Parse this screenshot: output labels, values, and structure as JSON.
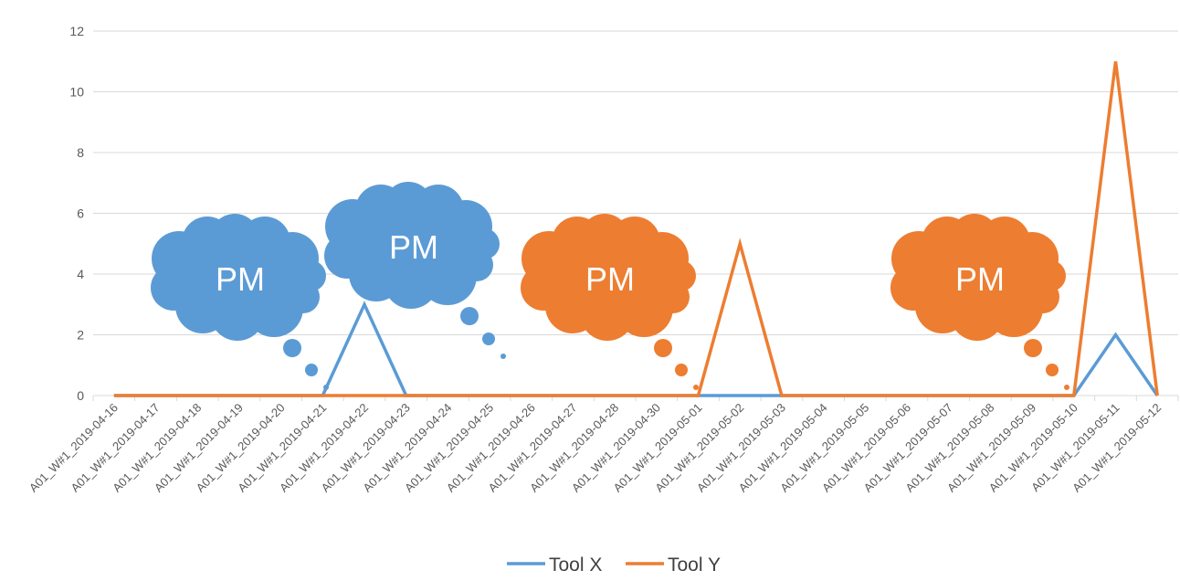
{
  "chart_data": {
    "type": "line",
    "title": "",
    "xlabel": "",
    "ylabel": "",
    "ylim": [
      0,
      12
    ],
    "yticks": [
      "0",
      "2",
      "4",
      "6",
      "8",
      "10",
      "12"
    ],
    "grid": "horizontal",
    "legend_position": "bottom",
    "categories": [
      "A01_W#1_2019-04-16",
      "A01_W#1_2019-04-17",
      "A01_W#1_2019-04-18",
      "A01_W#1_2019-04-19",
      "A01_W#1_2019-04-20",
      "A01_W#1_2019-04-21",
      "A01_W#1_2019-04-22",
      "A01_W#1_2019-04-23",
      "A01_W#1_2019-04-24",
      "A01_W#1_2019-04-25",
      "A01_W#1_2019-04-26",
      "A01_W#1_2019-04-27",
      "A01_W#1_2019-04-28",
      "A01_W#1_2019-04-30",
      "A01_W#1_2019-05-01",
      "A01_W#1_2019-05-02",
      "A01_W#1_2019-05-03",
      "A01_W#1_2019-05-04",
      "A01_W#1_2019-05-05",
      "A01_W#1_2019-05-06",
      "A01_W#1_2019-05-07",
      "A01_W#1_2019-05-08",
      "A01_W#1_2019-05-09",
      "A01_W#1_2019-05-10",
      "A01_W#1_2019-05-11",
      "A01_W#1_2019-05-12"
    ],
    "series": [
      {
        "name": "Tool X",
        "color": "#5b9bd5",
        "values": [
          0,
          0,
          0,
          0,
          0,
          0,
          3,
          0,
          0,
          0,
          0,
          0,
          0,
          0,
          0,
          0,
          0,
          0,
          0,
          0,
          0,
          0,
          0,
          0,
          2,
          0
        ]
      },
      {
        "name": "Tool Y",
        "color": "#ed7d31",
        "values": [
          0,
          0,
          0,
          0,
          0,
          0,
          0,
          0,
          0,
          0,
          0,
          0,
          0,
          0,
          0,
          5,
          0,
          0,
          0,
          0,
          0,
          0,
          0,
          0,
          11,
          0
        ]
      }
    ],
    "annotations": [
      {
        "text": "PM",
        "color": "#5b9bd5"
      },
      {
        "text": "PM",
        "color": "#5b9bd5"
      },
      {
        "text": "PM",
        "color": "#ed7d31"
      },
      {
        "text": "PM",
        "color": "#ed7d31"
      }
    ]
  }
}
